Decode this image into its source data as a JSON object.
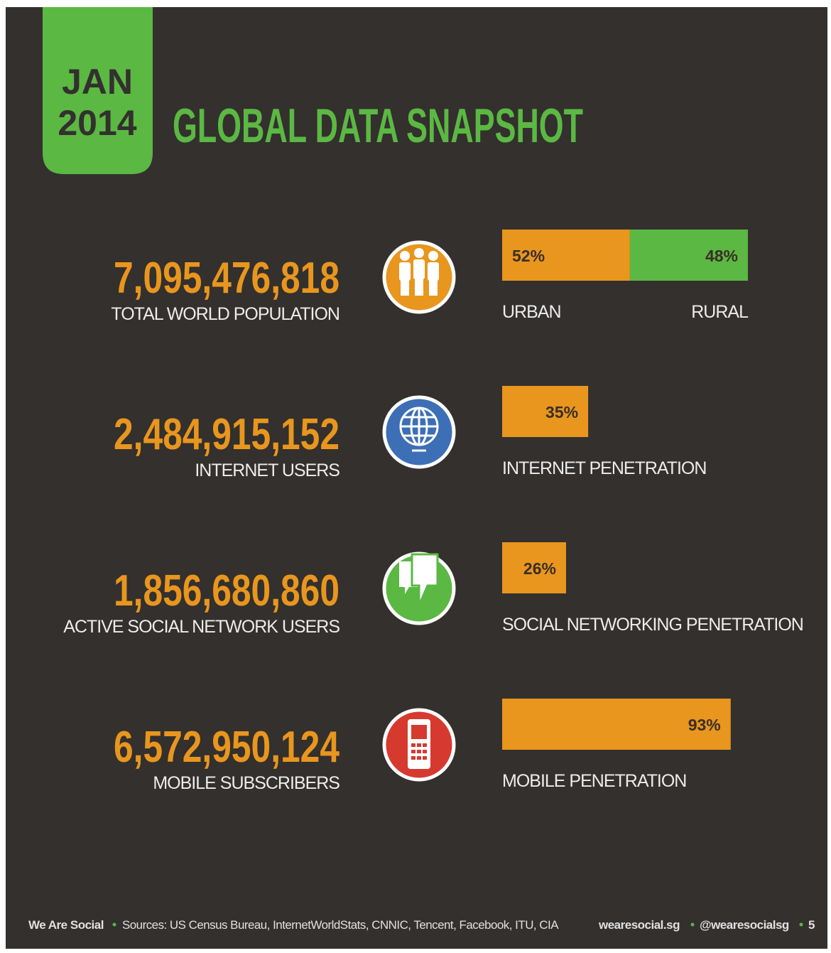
{
  "badge": {
    "month": "JAN",
    "year": "2014"
  },
  "title": "GLOBAL DATA SNAPSHOT",
  "rows": [
    {
      "value": "7,095,476,818",
      "label": "TOTAL WORLD POPULATION",
      "bars": [
        {
          "name": "URBAN",
          "value": 52,
          "value_label": "52%",
          "color": "#e8961e"
        },
        {
          "name": "RURAL",
          "value": 48,
          "value_label": "48%",
          "color": "#5bb843"
        }
      ]
    },
    {
      "value": "2,484,915,152",
      "label": "INTERNET USERS",
      "bars": [
        {
          "name": "INTERNET PENETRATION",
          "value": 35,
          "value_label": "35%",
          "color": "#e8961e"
        }
      ]
    },
    {
      "value": "1,856,680,860",
      "label": "ACTIVE SOCIAL NETWORK USERS",
      "bars": [
        {
          "name": "SOCIAL NETWORKING PENETRATION",
          "value": 26,
          "value_label": "26%",
          "color": "#e8961e"
        }
      ]
    },
    {
      "value": "6,572,950,124",
      "label": "MOBILE SUBSCRIBERS",
      "bars": [
        {
          "name": "MOBILE PENETRATION",
          "value": 93,
          "value_label": "93%",
          "color": "#e8961e"
        }
      ]
    }
  ],
  "footer": {
    "brand": "We Are Social",
    "sources": "Sources: US Census Bureau, InternetWorldStats, CNNIC, Tencent, Facebook, ITU, CIA",
    "site": "wearesocial.sg",
    "handle": "@wearesocialsg",
    "page": "5"
  }
}
